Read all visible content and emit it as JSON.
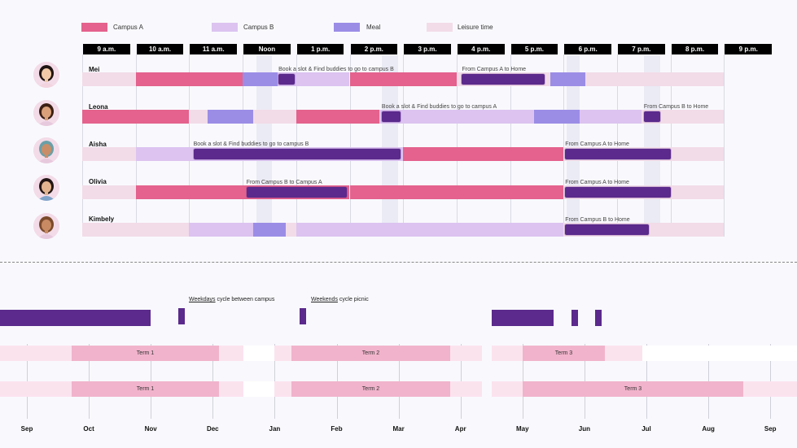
{
  "colors": {
    "campus_a": "#e4628d",
    "campus_b": "#dcc3f0",
    "meal": "#9b8de6",
    "leisure": "#f2dce8",
    "travel": "#5b2a8c",
    "term": "#f1b3cb",
    "break": "#fbe3ee"
  },
  "legend": [
    {
      "label": "Campus A",
      "color": "#e4628d"
    },
    {
      "label": "Campus B",
      "color": "#dcc3f0"
    },
    {
      "label": "Meal",
      "color": "#9b8de6"
    },
    {
      "label": "Leisure time",
      "color": "#f2dce8"
    }
  ],
  "hours": [
    "9 a.m.",
    "10 a.m.",
    "11 a.m.",
    "Noon",
    "1 p.m.",
    "2 p.m.",
    "3 p.m.",
    "4 p.m.",
    "5 p.m.",
    "6 p.m.",
    "7 p.m.",
    "8 p.m.",
    "9 p.m."
  ],
  "people": [
    {
      "name": "Mei",
      "segments": [
        {
          "start": 9,
          "end": 10,
          "type": "leisure"
        },
        {
          "start": 10,
          "end": 12,
          "type": "campus_a"
        },
        {
          "start": 12,
          "end": 12.65,
          "type": "meal"
        },
        {
          "start": 12.65,
          "end": 14,
          "type": "campus_b"
        },
        {
          "start": 14,
          "end": 16,
          "type": "campus_a"
        },
        {
          "start": 16,
          "end": 17.75,
          "type": "leisure"
        },
        {
          "start": 17.75,
          "end": 18.4,
          "type": "meal"
        },
        {
          "start": 18.4,
          "end": 21,
          "type": "leisure"
        }
      ],
      "trips": [
        {
          "start": 12.67,
          "end": 12.97,
          "label": "Book a slot & Find buddies to go to campus B"
        },
        {
          "start": 16.1,
          "end": 17.65,
          "label": "From Campus A to Home"
        }
      ],
      "avatar": {
        "skin": "#f0c9a8",
        "hair": "#1e1412",
        "shirt": "#f2d4df"
      }
    },
    {
      "name": "Leona",
      "segments": [
        {
          "start": 9,
          "end": 11,
          "type": "campus_a"
        },
        {
          "start": 11,
          "end": 11.35,
          "type": "leisure"
        },
        {
          "start": 11.35,
          "end": 12.2,
          "type": "meal"
        },
        {
          "start": 12.2,
          "end": 13,
          "type": "leisure"
        },
        {
          "start": 13,
          "end": 14.55,
          "type": "campus_a"
        },
        {
          "start": 14.55,
          "end": 17.45,
          "type": "campus_b"
        },
        {
          "start": 17.45,
          "end": 18.3,
          "type": "meal"
        },
        {
          "start": 18.3,
          "end": 19.45,
          "type": "campus_b"
        },
        {
          "start": 19.45,
          "end": 21,
          "type": "leisure"
        }
      ],
      "trips": [
        {
          "start": 14.6,
          "end": 14.95,
          "label": "Book a slot & Find buddies to go to campus A"
        },
        {
          "start": 19.5,
          "end": 19.8,
          "label": "From Campus B to Home"
        }
      ],
      "avatar": {
        "skin": "#d9a07a",
        "hair": "#3b1f14",
        "shirt": "#e7c9dd"
      }
    },
    {
      "name": "Aisha",
      "segments": [
        {
          "start": 9,
          "end": 10,
          "type": "leisure"
        },
        {
          "start": 10,
          "end": 11.05,
          "type": "campus_b"
        },
        {
          "start": 11.05,
          "end": 15,
          "type": "campus_b"
        },
        {
          "start": 15,
          "end": 18,
          "type": "campus_a"
        },
        {
          "start": 18,
          "end": 21,
          "type": "leisure"
        }
      ],
      "trips": [
        {
          "start": 11.08,
          "end": 14.95,
          "label": "Book a slot & Find buddies to go to campus B"
        },
        {
          "start": 18.03,
          "end": 20,
          "label": "From Campus A to Home"
        }
      ],
      "avatar": {
        "skin": "#c98d68",
        "hair": "#6aa0a8",
        "shirt": "#e7c9dd"
      }
    },
    {
      "name": "Olivia",
      "segments": [
        {
          "start": 9,
          "end": 10,
          "type": "leisure"
        },
        {
          "start": 10,
          "end": 14,
          "type": "campus_a"
        },
        {
          "start": 14,
          "end": 18,
          "type": "campus_a"
        },
        {
          "start": 18,
          "end": 21,
          "type": "leisure"
        }
      ],
      "trips": [
        {
          "start": 12.07,
          "end": 13.95,
          "label": "From Campus B to Campus A"
        },
        {
          "start": 18.03,
          "end": 20,
          "label": "From Campus A to Home"
        }
      ],
      "avatar": {
        "skin": "#e3b490",
        "hair": "#221615",
        "shirt": "#7fa3c9"
      }
    },
    {
      "name": "Kimbely",
      "segments": [
        {
          "start": 9,
          "end": 11,
          "type": "leisure"
        },
        {
          "start": 11,
          "end": 12.2,
          "type": "campus_b"
        },
        {
          "start": 12.2,
          "end": 12.8,
          "type": "meal"
        },
        {
          "start": 12.8,
          "end": 13,
          "type": "leisure"
        },
        {
          "start": 13,
          "end": 18,
          "type": "campus_b"
        },
        {
          "start": 18,
          "end": 21,
          "type": "leisure"
        }
      ],
      "trips": [
        {
          "start": 18.03,
          "end": 19.6,
          "label": "From Campus B to Home"
        }
      ],
      "avatar": {
        "skin": "#c88a63",
        "hair": "#7a4a2b",
        "shirt": "#e7c9dd"
      }
    }
  ],
  "year_timeline": {
    "months": [
      "Sep",
      "Oct",
      "Nov",
      "Dec",
      "Jan",
      "Feb",
      "Mar",
      "Apr",
      "May",
      "Jun",
      "Jul",
      "Aug",
      "Sep"
    ],
    "notes": [
      {
        "keyword": "Weekdays",
        "text": " cycle between campus"
      },
      {
        "keyword": "Weekends",
        "text": " cycle picnic"
      }
    ],
    "term_rows": [
      {
        "terms": [
          "Term 1",
          "Term 2",
          "Term 3"
        ]
      },
      {
        "terms": [
          "Term 1",
          "Term 2",
          "Term 3"
        ]
      }
    ]
  }
}
